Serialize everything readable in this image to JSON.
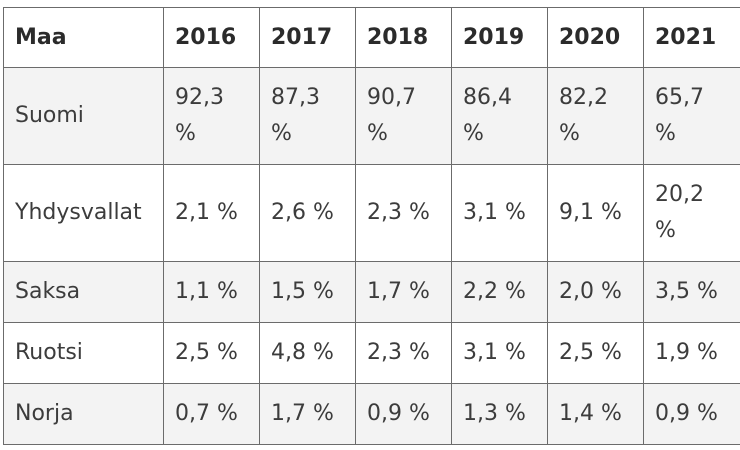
{
  "table": {
    "headers": [
      "Maa",
      "2016",
      "2017",
      "2018",
      "2019",
      "2020",
      "2021"
    ],
    "rows": [
      {
        "country": "Suomi",
        "values": [
          "92,3 %",
          "87,3 %",
          "90,7 %",
          "86,4 %",
          "82,2 %",
          "65,7 %"
        ]
      },
      {
        "country": "Yhdysvallat",
        "values": [
          "2,1 %",
          "2,6 %",
          "2,3 %",
          "3,1 %",
          "9,1 %",
          "20,2 %"
        ]
      },
      {
        "country": "Saksa",
        "values": [
          "1,1 %",
          "1,5 %",
          "1,7 %",
          "2,2 %",
          "2,0 %",
          "3,5 %"
        ]
      },
      {
        "country": "Ruotsi",
        "values": [
          "2,5 %",
          "4,8 %",
          "2,3 %",
          "3,1 %",
          "2,5 %",
          "1,9 %"
        ]
      },
      {
        "country": "Norja",
        "values": [
          "0,7 %",
          "1,7 %",
          "0,9 %",
          "1,3 %",
          "1,4 %",
          "0,9 %"
        ]
      }
    ]
  },
  "colors": {
    "border": "#6b6b6b",
    "shaded_row": "#f3f3f3",
    "plain_row": "#ffffff",
    "text": "#333333"
  }
}
